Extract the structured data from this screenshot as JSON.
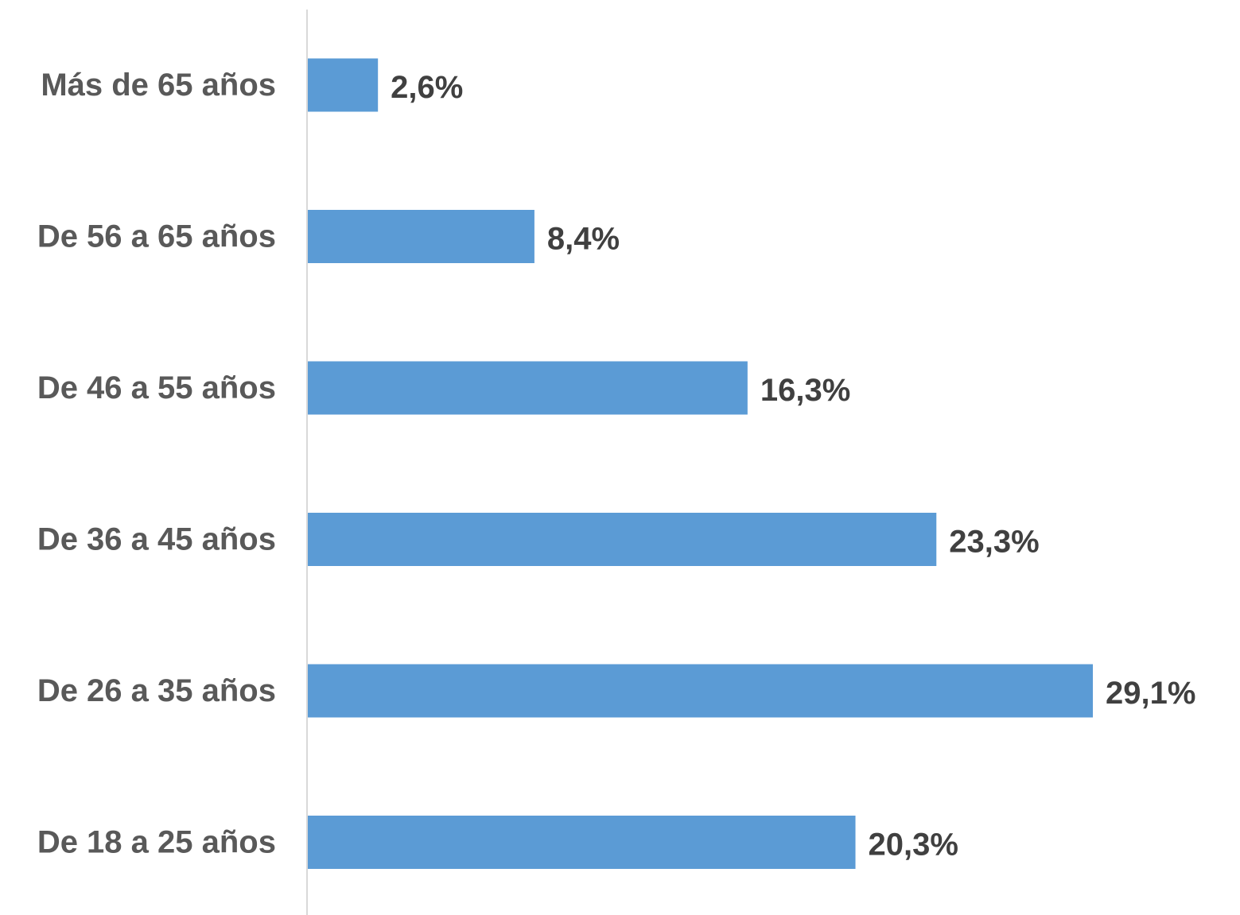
{
  "chart_data": {
    "type": "bar",
    "orientation": "horizontal",
    "categories": [
      "Más de 65 años",
      "De 56 a 65 años",
      "De 46 a 55 años",
      "De 36 a 45 años",
      "De 26 a 35 años",
      "De 18 a 25 años"
    ],
    "values": [
      2.6,
      8.4,
      16.3,
      23.3,
      29.1,
      20.3
    ],
    "value_labels": [
      "2,6%",
      "8,4%",
      "16,3%",
      "23,3%",
      "29,1%",
      "20,3%"
    ],
    "unit": "%",
    "title": "",
    "xlabel": "",
    "ylabel": "",
    "xlim": [
      0,
      29.1
    ],
    "grid": false,
    "legend": "none",
    "colors": {
      "bar": "#5b9bd5",
      "axis": "#d9d9d9",
      "category_text": "#595959",
      "value_text": "#404040"
    }
  }
}
